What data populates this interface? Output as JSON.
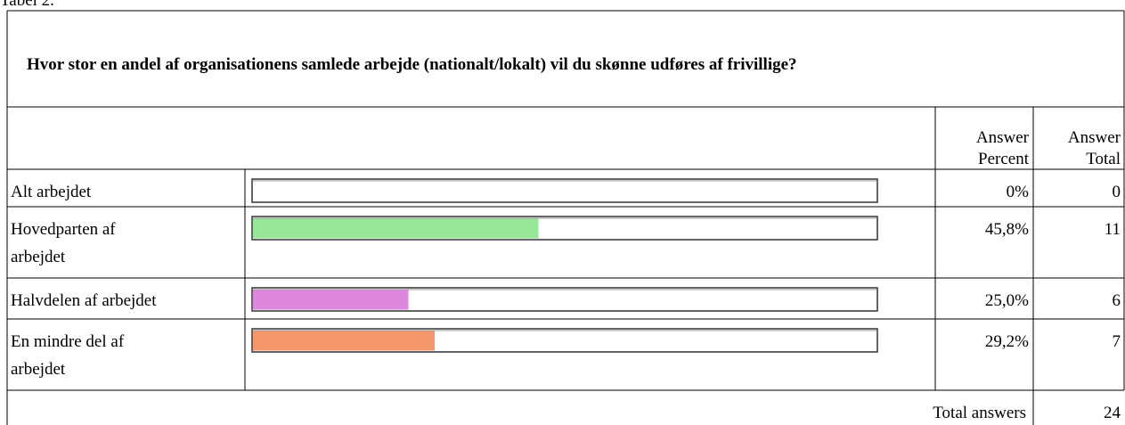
{
  "caption": "Tabel 2.",
  "table": {
    "title": "Hvor stor en andel af organisationens samlede arbejde (nationalt/lokalt) vil du skønne udføres af frivillige?",
    "headers": [
      [
        "Answer",
        "Percent"
      ],
      [
        "Answer",
        "Total"
      ]
    ],
    "xlim": [
      0,
      100
    ],
    "rows": [
      {
        "label": [
          "Alt arbejdet"
        ],
        "percent": 0,
        "percent_label": "0%",
        "total": 0,
        "color": "#ffffff"
      },
      {
        "label": [
          "Hovedparten af",
          "arbejdet"
        ],
        "percent": 45.8,
        "percent_label": "45,8%",
        "total": 11,
        "color": "#98e698"
      },
      {
        "label": [
          "Halvdelen af arbejdet"
        ],
        "percent": 25.0,
        "percent_label": "25,0%",
        "total": 6,
        "color": "#dd88dd"
      },
      {
        "label": [
          "En mindre del af",
          "arbejdet"
        ],
        "percent": 29.2,
        "percent_label": "29,2%",
        "total": 7,
        "color": "#f4976a"
      }
    ],
    "footer_label": "Total answers",
    "footer_total": 24
  }
}
